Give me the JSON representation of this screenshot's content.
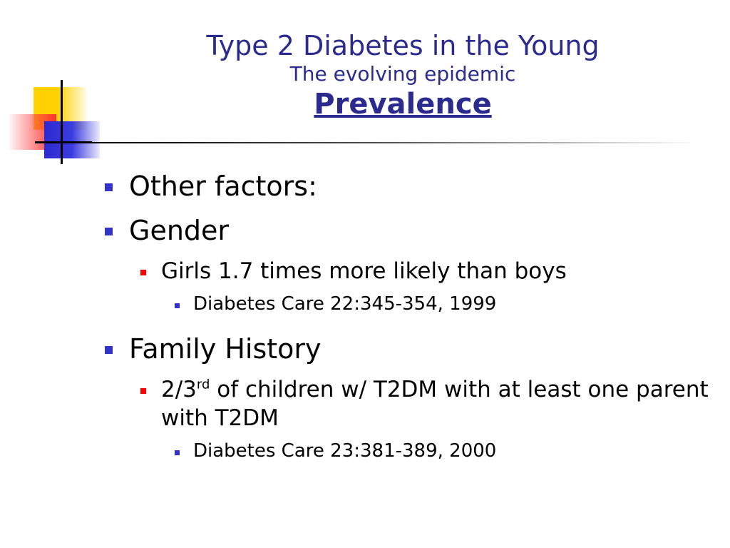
{
  "title": {
    "main": "Type 2 Diabetes in the Young",
    "sub": "The evolving epidemic",
    "heading": "Prevalence"
  },
  "bullets": {
    "other_factors": "Other factors:",
    "gender": "Gender",
    "girls": "Girls 1.7 times more likely than boys",
    "ref1": "Diabetes Care 22:345-354, 1999",
    "family_history": "Family History",
    "fraction": "2/3",
    "fraction_sup": "rd",
    "children_text": " of children w/ T2DM with at least one parent with T2DM",
    "ref2": "Diabetes Care 23:381-389, 2000"
  },
  "colors": {
    "title": "#2b2b8f",
    "level1_bullet": "#3333cc",
    "level2_bullet": "#ff0000",
    "level3_bullet": "#3333cc"
  }
}
